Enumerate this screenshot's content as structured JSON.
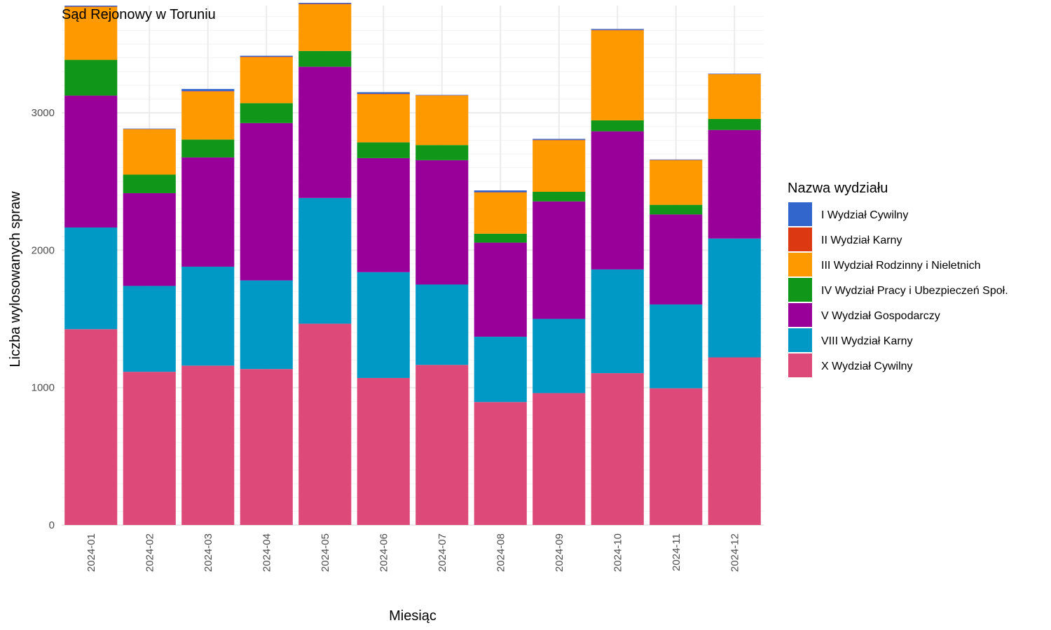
{
  "chart_data": {
    "type": "bar",
    "stacked": true,
    "title": "Sąd Rejonowy w Toruniu",
    "xlabel": "Miesiąc",
    "ylabel": "Liczba wylosowanych spraw",
    "ylim": [
      0,
      3780
    ],
    "yticks": [
      0,
      1000,
      2000,
      3000
    ],
    "ytick_labels": [
      "0",
      "1000",
      "2000",
      "3000"
    ],
    "grid": true,
    "legend_title": "Nazwa wydziału",
    "legend_position": "right",
    "categories": [
      "2024-01",
      "2024-02",
      "2024-03",
      "2024-04",
      "2024-05",
      "2024-06",
      "2024-07",
      "2024-08",
      "2024-09",
      "2024-10",
      "2024-11",
      "2024-12"
    ],
    "series": [
      {
        "name": "X Wydział Cywilny",
        "color": "#DD4A7A",
        "values": [
          1425,
          1115,
          1160,
          1135,
          1465,
          1070,
          1165,
          895,
          960,
          1105,
          995,
          1220
        ]
      },
      {
        "name": "VIII Wydział Karny",
        "color": "#0099C6",
        "values": [
          740,
          625,
          720,
          645,
          915,
          770,
          585,
          475,
          540,
          755,
          610,
          865
        ]
      },
      {
        "name": "V Wydział Gospodarczy",
        "color": "#990099",
        "values": [
          960,
          675,
          795,
          1145,
          955,
          830,
          905,
          685,
          855,
          1005,
          655,
          790
        ]
      },
      {
        "name": "IV Wydział Pracy i Ubezpieczeń Społ.",
        "color": "#109618",
        "values": [
          260,
          135,
          130,
          145,
          115,
          115,
          110,
          65,
          70,
          80,
          70,
          80
        ]
      },
      {
        "name": "III Wydział Rodzinny i Nieletnich",
        "color": "#FF9900",
        "values": [
          385,
          330,
          350,
          335,
          340,
          350,
          360,
          300,
          375,
          655,
          325,
          325
        ]
      },
      {
        "name": "II Wydział Karny",
        "color": "#DC3912",
        "values": [
          3,
          2,
          3,
          3,
          3,
          3,
          2,
          2,
          3,
          3,
          2,
          2
        ]
      },
      {
        "name": "I Wydział Cywilny",
        "color": "#3366CC",
        "values": [
          7,
          3,
          15,
          7,
          7,
          12,
          3,
          13,
          7,
          7,
          3,
          3
        ]
      }
    ]
  }
}
